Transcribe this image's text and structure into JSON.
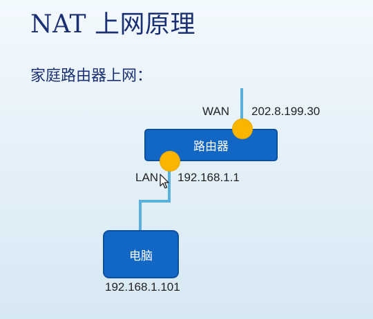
{
  "title": "NAT 上网原理",
  "subtitle": "家庭路由器上网：",
  "router": {
    "label": "路由器"
  },
  "wan": {
    "label": "WAN",
    "ip": "202.8.199.30"
  },
  "lan": {
    "label": "LAN",
    "ip": "192.168.1.1"
  },
  "pc": {
    "label": "电脑",
    "ip": "192.168.1.101"
  },
  "colors": {
    "box_fill": "#1266c4",
    "port_dot": "#f9b500",
    "wire": "#5ab0dc",
    "title_text": "#1b2f73"
  },
  "icons": {
    "mouse_cursor": "pointer-arrow-icon"
  }
}
